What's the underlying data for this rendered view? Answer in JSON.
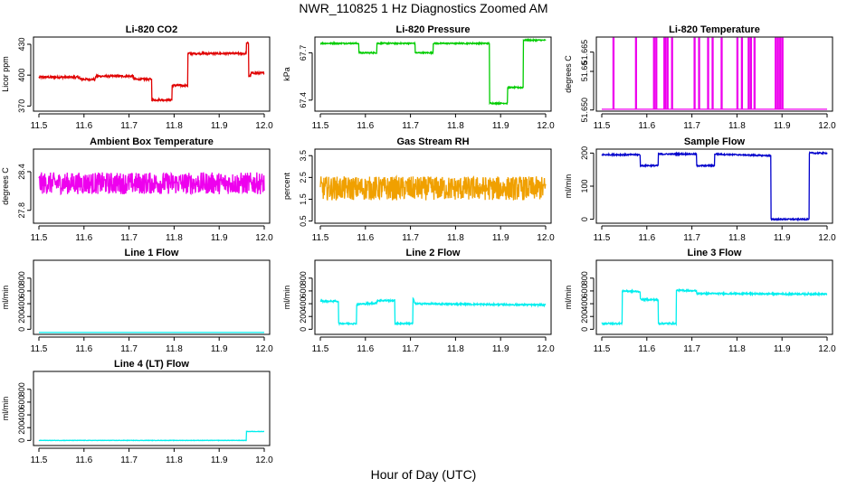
{
  "figure": {
    "title": "NWR_110825  1 Hz Diagnostics Zoomed AM",
    "xlabel": "Hour of Day (UTC)"
  },
  "chart_data": [
    {
      "type": "line",
      "title": "Li-820 CO2",
      "ylabel": "Licor ppm",
      "color": "#e00000",
      "xlim": [
        11.5,
        12.0
      ],
      "ylim": [
        365,
        437
      ],
      "yticks": [
        370,
        400,
        430
      ],
      "xticks": [
        11.5,
        11.6,
        11.7,
        11.8,
        11.9,
        12.0
      ],
      "series": [
        {
          "noise": 1.0,
          "points": [
            [
              11.5,
              398
            ],
            [
              11.59,
              398
            ],
            [
              11.59,
              396
            ],
            [
              11.625,
              396
            ],
            [
              11.625,
              399
            ],
            [
              11.71,
              399
            ],
            [
              11.71,
              396
            ],
            [
              11.75,
              396
            ],
            [
              11.75,
              376
            ],
            [
              11.795,
              376
            ],
            [
              11.795,
              390
            ],
            [
              11.83,
              390
            ],
            [
              11.83,
              421
            ],
            [
              11.96,
              421
            ],
            [
              11.96,
              431
            ],
            [
              11.965,
              431
            ],
            [
              11.965,
              399
            ],
            [
              11.97,
              399
            ],
            [
              11.97,
              402
            ],
            [
              12.0,
              402
            ]
          ]
        }
      ]
    },
    {
      "type": "line",
      "title": "Li-820 Pressure",
      "ylabel": "kPa",
      "color": "#00cc00",
      "xlim": [
        11.5,
        12.0
      ],
      "ylim": [
        67.33,
        67.8
      ],
      "yticks": [
        67.4,
        67.7
      ],
      "xticks": [
        11.5,
        11.6,
        11.7,
        11.8,
        11.9,
        12.0
      ],
      "series": [
        {
          "noise": 0.004,
          "points": [
            [
              11.5,
              67.76
            ],
            [
              11.585,
              67.76
            ],
            [
              11.585,
              67.7
            ],
            [
              11.625,
              67.7
            ],
            [
              11.625,
              67.76
            ],
            [
              11.71,
              67.76
            ],
            [
              11.71,
              67.7
            ],
            [
              11.75,
              67.7
            ],
            [
              11.75,
              67.76
            ],
            [
              11.875,
              67.76
            ],
            [
              11.875,
              67.38
            ],
            [
              11.915,
              67.38
            ],
            [
              11.915,
              67.48
            ],
            [
              11.95,
              67.48
            ],
            [
              11.95,
              67.78
            ],
            [
              12.0,
              67.78
            ]
          ]
        }
      ]
    },
    {
      "type": "line",
      "title": "Li-820 Temperature",
      "ylabel": "degrees C",
      "color": "#ee00ee",
      "xlim": [
        11.5,
        12.0
      ],
      "ylim": [
        51.6497,
        51.6689
      ],
      "yticks": [
        51.65,
        51.66,
        51.665
      ],
      "yticklabels": [
        "51.650",
        "51.66",
        "51.665"
      ],
      "xticks": [
        11.5,
        11.6,
        11.7,
        11.8,
        11.9,
        12.0
      ],
      "series": [
        {
          "noise": 0,
          "baseline": 51.6502,
          "spike": 51.6686,
          "spikes": [
            11.525,
            11.575,
            11.615,
            11.62,
            11.638,
            11.64,
            11.645,
            11.655,
            11.705,
            11.715,
            11.735,
            11.745,
            11.765,
            11.8,
            11.81,
            11.825,
            11.83,
            11.838,
            11.885,
            11.89,
            11.895,
            11.9
          ]
        }
      ]
    },
    {
      "type": "line",
      "title": "Ambient Box Temperature",
      "ylabel": "degrees C",
      "color": "#ee00ee",
      "xlim": [
        11.5,
        12.0
      ],
      "ylim": [
        27.6,
        28.75
      ],
      "yticks": [
        27.8,
        28.4
      ],
      "xticks": [
        11.5,
        11.6,
        11.7,
        11.8,
        11.9,
        12.0
      ],
      "series": [
        {
          "noise": 0.17,
          "points": [
            [
              11.5,
              28.22
            ],
            [
              12.0,
              28.22
            ]
          ]
        }
      ]
    },
    {
      "type": "line",
      "title": "Gas Stream RH",
      "ylabel": "percent",
      "color": "#f0a000",
      "xlim": [
        11.5,
        12.0
      ],
      "ylim": [
        0.4,
        3.8
      ],
      "yticks": [
        0.5,
        1.5,
        2.5,
        3.5
      ],
      "xticks": [
        11.5,
        11.6,
        11.7,
        11.8,
        11.9,
        12.0
      ],
      "series": [
        {
          "noise": 0.55,
          "points": [
            [
              11.5,
              2.0
            ],
            [
              12.0,
              2.0
            ]
          ]
        }
      ]
    },
    {
      "type": "line",
      "title": "Sample Flow",
      "ylabel": "ml/min",
      "color": "#0000cc",
      "xlim": [
        11.5,
        12.0
      ],
      "ylim": [
        -12,
        212
      ],
      "yticks": [
        0,
        100,
        200
      ],
      "xticks": [
        11.5,
        11.6,
        11.7,
        11.8,
        11.9,
        12.0
      ],
      "series": [
        {
          "noise": 2.0,
          "points": [
            [
              11.5,
              195
            ],
            [
              11.585,
              195
            ],
            [
              11.585,
              162
            ],
            [
              11.625,
              162
            ],
            [
              11.625,
              197
            ],
            [
              11.71,
              197
            ],
            [
              11.71,
              162
            ],
            [
              11.75,
              162
            ],
            [
              11.75,
              197
            ],
            [
              11.875,
              192
            ],
            [
              11.875,
              0
            ],
            [
              11.96,
              0
            ],
            [
              11.96,
              200
            ],
            [
              12.0,
              200
            ]
          ]
        }
      ]
    },
    {
      "type": "line",
      "title": "Line 1 Flow",
      "ylabel": "ml/min",
      "color": "#00eeee",
      "xlim": [
        11.5,
        12.0
      ],
      "ylim": [
        -80,
        1080
      ],
      "yticks": [
        0,
        200,
        400,
        600,
        800
      ],
      "xticks": [
        11.5,
        11.6,
        11.7,
        11.8,
        11.9,
        12.0
      ],
      "series": [
        {
          "noise": 0,
          "points": [
            [
              11.5,
              -50
            ],
            [
              12.0,
              -50
            ]
          ]
        }
      ]
    },
    {
      "type": "line",
      "title": "Line 2 Flow",
      "ylabel": "ml/min",
      "color": "#00eeee",
      "xlim": [
        11.5,
        12.0
      ],
      "ylim": [
        -80,
        1080
      ],
      "yticks": [
        0,
        200,
        400,
        600,
        800
      ],
      "xticks": [
        11.5,
        11.6,
        11.7,
        11.8,
        11.9,
        12.0
      ],
      "series": [
        {
          "noise": 12,
          "points": [
            [
              11.5,
              440
            ],
            [
              11.54,
              440
            ],
            [
              11.54,
              90
            ],
            [
              11.58,
              90
            ],
            [
              11.58,
              390
            ],
            [
              11.625,
              410
            ],
            [
              11.625,
              450
            ],
            [
              11.665,
              450
            ],
            [
              11.665,
              90
            ],
            [
              11.705,
              90
            ],
            [
              11.705,
              500
            ],
            [
              11.71,
              400
            ],
            [
              12.0,
              380
            ]
          ]
        }
      ]
    },
    {
      "type": "line",
      "title": "Line 3 Flow",
      "ylabel": "ml/min",
      "color": "#00eeee",
      "xlim": [
        11.5,
        12.0
      ],
      "ylim": [
        -80,
        1080
      ],
      "yticks": [
        0,
        200,
        400,
        600,
        800
      ],
      "xticks": [
        11.5,
        11.6,
        11.7,
        11.8,
        11.9,
        12.0
      ],
      "series": [
        {
          "noise": 12,
          "points": [
            [
              11.5,
              180
            ],
            [
              11.5,
              90
            ],
            [
              11.545,
              90
            ],
            [
              11.545,
              600
            ],
            [
              11.585,
              590
            ],
            [
              11.585,
              470
            ],
            [
              11.625,
              460
            ],
            [
              11.625,
              90
            ],
            [
              11.665,
              90
            ],
            [
              11.665,
              610
            ],
            [
              11.71,
              600
            ],
            [
              11.71,
              560
            ],
            [
              12.0,
              550
            ]
          ]
        }
      ]
    },
    {
      "type": "line",
      "title": "Line 4 (LT) Flow",
      "ylabel": "ml/min",
      "color": "#00eeee",
      "xlim": [
        11.5,
        12.0
      ],
      "ylim": [
        -80,
        1080
      ],
      "yticks": [
        0,
        200,
        400,
        600,
        800
      ],
      "xticks": [
        11.5,
        11.6,
        11.7,
        11.8,
        11.9,
        12.0
      ],
      "series": [
        {
          "noise": 3,
          "points": [
            [
              11.5,
              0
            ],
            [
              11.96,
              0
            ],
            [
              11.96,
              140
            ],
            [
              12.0,
              140
            ]
          ]
        }
      ]
    }
  ]
}
